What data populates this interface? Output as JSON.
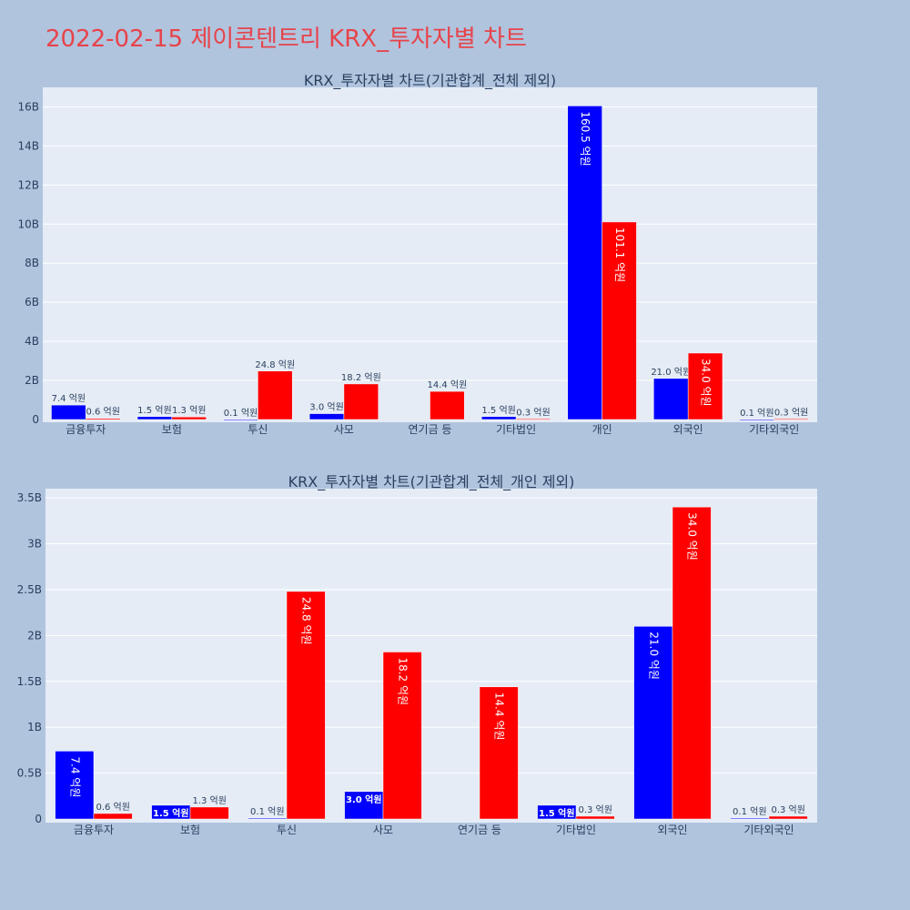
{
  "title": "2022-02-15 제이콘텐트리 KRX_투자자별 차트",
  "colors": {
    "buy": "#0000ff",
    "sell": "#ff0000",
    "plot_bg": "#e5ecf6",
    "page_bg": "#b0c4de",
    "title": "#e8434a"
  },
  "chart_data": [
    {
      "type": "bar",
      "title": "KRX_투자자별 차트(기관합계_전체 제외)",
      "categories": [
        "금융투자",
        "보험",
        "투신",
        "사모",
        "연기금 등",
        "기타법인",
        "개인",
        "외국인",
        "기타외국인"
      ],
      "series": [
        {
          "values": [
            0.74,
            0.15,
            0.01,
            0.3,
            0,
            0.15,
            16.05,
            2.1,
            0.01
          ],
          "labels": [
            "7.4 억원",
            "1.5 억원",
            "0.1 억원",
            "3.0 억원",
            "",
            "1.5 억원",
            "160.5 억원",
            "21.0 억원",
            "0.1 억원"
          ]
        },
        {
          "values": [
            0.06,
            0.13,
            2.48,
            1.82,
            1.44,
            0.03,
            10.11,
            3.4,
            0.03
          ],
          "labels": [
            "0.6 억원",
            "1.3 억원",
            "24.8 억원",
            "18.2 억원",
            "14.4 억원",
            "0.3 억원",
            "101.1 억원",
            "34.0 억원",
            "0.3 억원"
          ]
        }
      ],
      "ylim": [
        0,
        17
      ],
      "yticks": [
        0,
        2,
        4,
        6,
        8,
        10,
        12,
        14,
        16
      ],
      "ytick_labels": [
        "0",
        "2B",
        "4B",
        "6B",
        "8B",
        "10B",
        "12B",
        "14B",
        "16B"
      ],
      "grid": true
    },
    {
      "type": "bar",
      "title": "KRX_투자자별 차트(기관합계_전체_개인 제외)",
      "categories": [
        "금융투자",
        "보험",
        "투신",
        "사모",
        "연기금 등",
        "기타법인",
        "외국인",
        "기타외국인"
      ],
      "series": [
        {
          "values": [
            0.74,
            0.15,
            0.01,
            0.3,
            0,
            0.15,
            2.1,
            0.01
          ],
          "labels": [
            "7.4 억원",
            "1.5 억원",
            "0.1 억원",
            "3.0 억원",
            "",
            "1.5 억원",
            "21.0 억원",
            "0.1 억원"
          ]
        },
        {
          "values": [
            0.06,
            0.13,
            2.48,
            1.82,
            1.44,
            0.03,
            3.4,
            0.03
          ],
          "labels": [
            "0.6 억원",
            "1.3 억원",
            "24.8 억원",
            "18.2 억원",
            "14.4 억원",
            "0.3 억원",
            "34.0 억원",
            "0.3 억원"
          ]
        }
      ],
      "ylim": [
        0,
        3.6
      ],
      "yticks": [
        0,
        0.5,
        1,
        1.5,
        2,
        2.5,
        3,
        3.5
      ],
      "ytick_labels": [
        "0",
        "0.5B",
        "1B",
        "1.5B",
        "2B",
        "2.5B",
        "3B",
        "3.5B"
      ],
      "grid": true
    }
  ]
}
